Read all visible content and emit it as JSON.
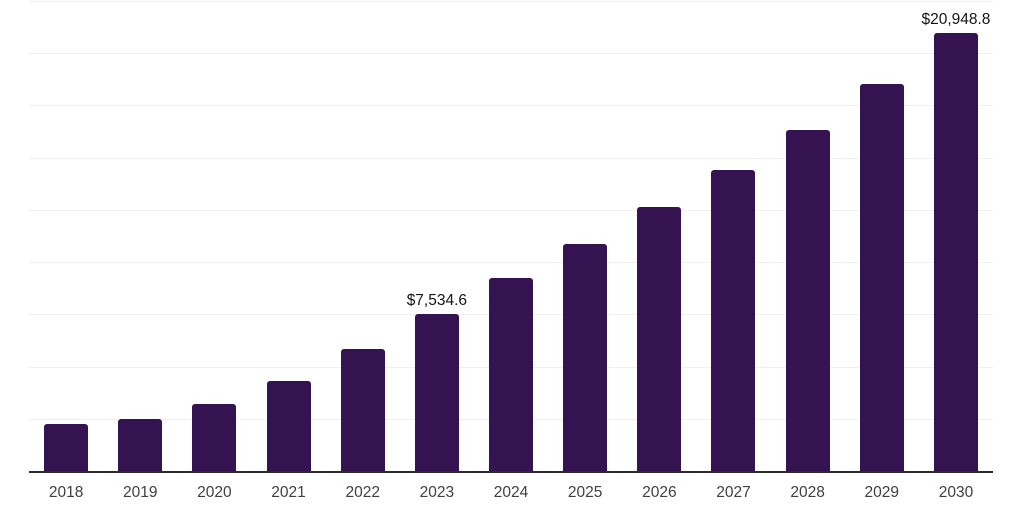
{
  "chart_data": {
    "type": "bar",
    "title": "",
    "xlabel": "",
    "ylabel": "",
    "currency_unit": "$",
    "ylim": [
      0,
      22500
    ],
    "grid_step": 2500,
    "grid": "horizontal",
    "legend": "none",
    "categories": [
      "2018",
      "2019",
      "2020",
      "2021",
      "2022",
      "2023",
      "2024",
      "2025",
      "2026",
      "2027",
      "2028",
      "2029",
      "2030"
    ],
    "values": [
      2230,
      2495,
      3210,
      4330,
      5830,
      7534.6,
      9235,
      10880,
      12650,
      14430,
      16340,
      18530,
      20948.8
    ],
    "bars": [
      {
        "year": "2018",
        "value": 2230
      },
      {
        "year": "2019",
        "value": 2495
      },
      {
        "year": "2020",
        "value": 3210
      },
      {
        "year": "2021",
        "value": 4330
      },
      {
        "year": "2022",
        "value": 5830
      },
      {
        "year": "2023",
        "value": 7534.6,
        "label": "$7,534.6"
      },
      {
        "year": "2024",
        "value": 9235
      },
      {
        "year": "2025",
        "value": 10880
      },
      {
        "year": "2026",
        "value": 12650
      },
      {
        "year": "2027",
        "value": 14430
      },
      {
        "year": "2028",
        "value": 16340
      },
      {
        "year": "2029",
        "value": 18530
      },
      {
        "year": "2030",
        "value": 20948.8,
        "label": "$20,948.8"
      }
    ],
    "colors": {
      "bar": "#341350",
      "axis": "#2b2b2b",
      "grid": "#f0f0f0",
      "tick_label": "#404040",
      "data_label": "#141414"
    }
  }
}
